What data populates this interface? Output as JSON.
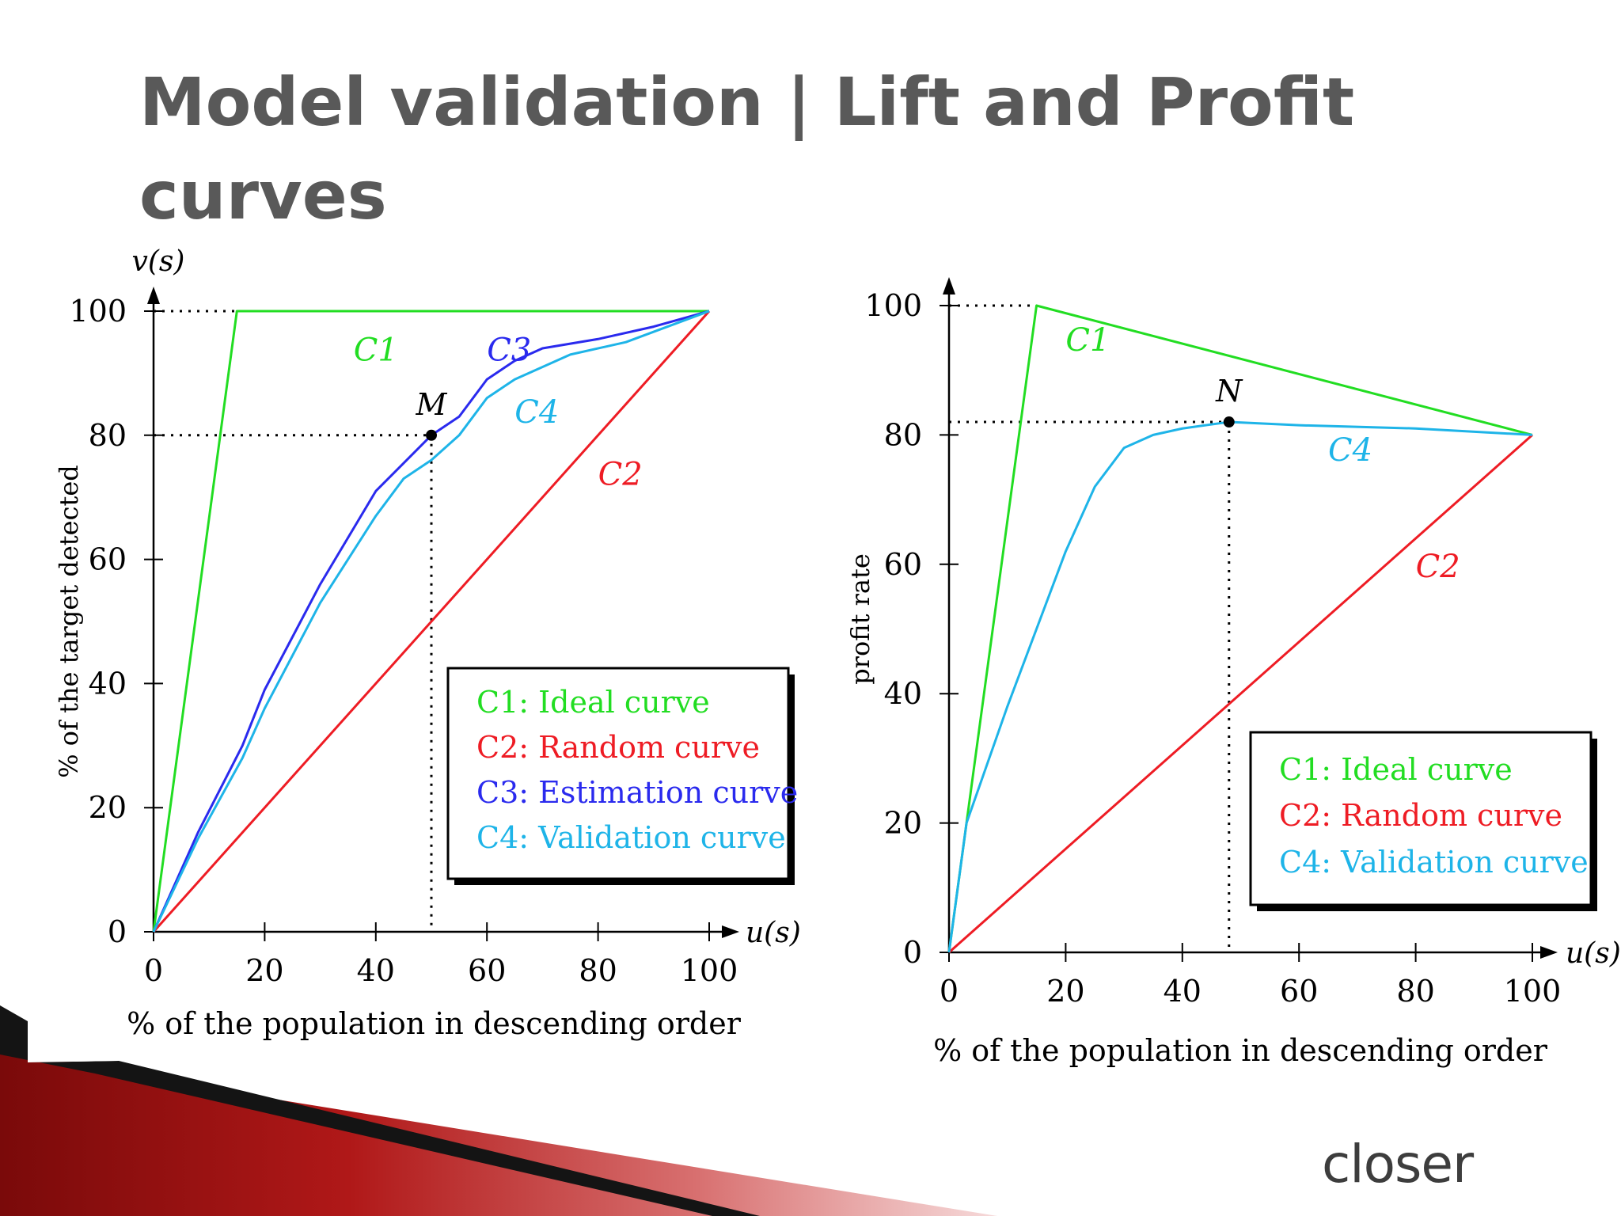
{
  "slide": {
    "title": "Model validation | Lift and Profit curves",
    "logo_text": "closer",
    "logo_dot_color": "#e8402e"
  },
  "chart_data": [
    {
      "type": "line",
      "ylabel_top": "v(s)",
      "ylabel": "% of the target detected",
      "xlabel": "% of the population in descending order",
      "x_axis_name": "u(s)",
      "xlim": [
        0,
        100
      ],
      "ylim": [
        0,
        100
      ],
      "xticks": [
        0,
        20,
        40,
        60,
        80,
        100
      ],
      "yticks": [
        0,
        20,
        40,
        60,
        80,
        100
      ],
      "grid": false,
      "legend_placement": "lower-right",
      "series": [
        {
          "label": "C1",
          "legend_text": "C1: Ideal curve",
          "color": "#22dd22",
          "x": [
            0,
            15,
            100
          ],
          "y": [
            0,
            100,
            100
          ]
        },
        {
          "label": "C2",
          "legend_text": "C2: Random curve",
          "color": "#ee1c24",
          "x": [
            0,
            100
          ],
          "y": [
            0,
            100
          ]
        },
        {
          "label": "C3",
          "legend_text": "C3: Estimation curve",
          "color": "#2a2aee",
          "x": [
            0,
            8,
            16,
            20,
            30,
            40,
            50,
            55,
            60,
            65,
            70,
            80,
            90,
            100
          ],
          "y": [
            0,
            16,
            30,
            39,
            56,
            71,
            80,
            83,
            89,
            92,
            94,
            95.5,
            97.5,
            100
          ]
        },
        {
          "label": "C4",
          "legend_text": "C4: Validation curve",
          "color": "#1eb4e8",
          "x": [
            0,
            8,
            16,
            20,
            30,
            40,
            45,
            50,
            55,
            60,
            65,
            75,
            85,
            100
          ],
          "y": [
            0,
            15,
            28,
            36,
            53,
            67,
            73,
            76,
            80,
            86,
            89,
            93,
            95,
            100
          ]
        }
      ],
      "point": {
        "label": "M",
        "x": 50,
        "y": 80
      }
    },
    {
      "type": "line",
      "ylabel": "profit rate",
      "xlabel": "% of the population in descending order",
      "x_axis_name": "u(s)",
      "xlim": [
        0,
        100
      ],
      "ylim": [
        0,
        100
      ],
      "xticks": [
        0,
        20,
        40,
        60,
        80,
        100
      ],
      "yticks": [
        0,
        20,
        40,
        60,
        80,
        100
      ],
      "grid": false,
      "legend_placement": "lower-right",
      "series": [
        {
          "label": "C1",
          "legend_text": "C1: Ideal curve",
          "color": "#22dd22",
          "x": [
            0,
            15,
            100
          ],
          "y": [
            0,
            100,
            80
          ]
        },
        {
          "label": "C2",
          "legend_text": "C2: Random curve",
          "color": "#ee1c24",
          "x": [
            0,
            100
          ],
          "y": [
            0,
            80
          ]
        },
        {
          "label": "C4",
          "legend_text": "C4: Validation curve",
          "color": "#1eb4e8",
          "x": [
            0,
            3,
            10,
            20,
            25,
            30,
            35,
            40,
            48,
            60,
            80,
            100
          ],
          "y": [
            0,
            20,
            38,
            62,
            72,
            78,
            80,
            81,
            82,
            81.5,
            81,
            80
          ]
        }
      ],
      "point": {
        "label": "N",
        "x": 48,
        "y": 82
      }
    }
  ]
}
